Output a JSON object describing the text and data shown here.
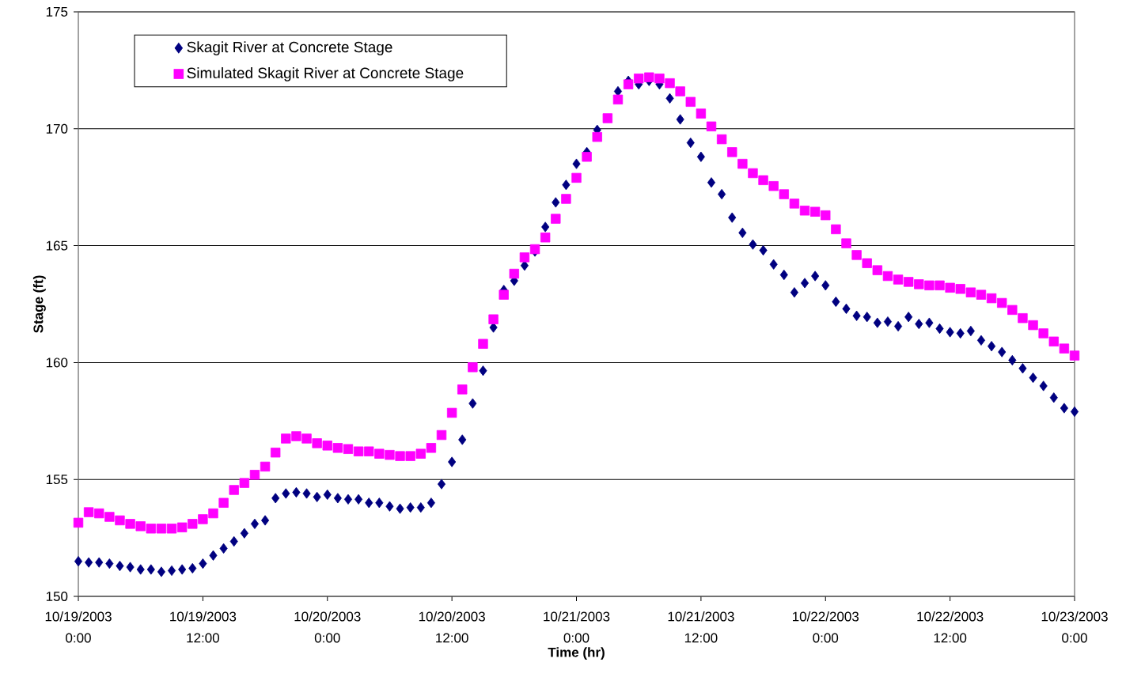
{
  "chart_data": {
    "type": "scatter",
    "xlabel": "Time (hr)",
    "ylabel": "Stage (ft)",
    "x": [
      "2003-10-19T00:00",
      "2003-10-19T01:00",
      "2003-10-19T02:00",
      "2003-10-19T03:00",
      "2003-10-19T04:00",
      "2003-10-19T05:00",
      "2003-10-19T06:00",
      "2003-10-19T07:00",
      "2003-10-19T08:00",
      "2003-10-19T09:00",
      "2003-10-19T10:00",
      "2003-10-19T11:00",
      "2003-10-19T12:00",
      "2003-10-19T13:00",
      "2003-10-19T14:00",
      "2003-10-19T15:00",
      "2003-10-19T16:00",
      "2003-10-19T17:00",
      "2003-10-19T18:00",
      "2003-10-19T19:00",
      "2003-10-19T20:00",
      "2003-10-19T21:00",
      "2003-10-19T22:00",
      "2003-10-19T23:00",
      "2003-10-20T00:00",
      "2003-10-20T01:00",
      "2003-10-20T02:00",
      "2003-10-20T03:00",
      "2003-10-20T04:00",
      "2003-10-20T05:00",
      "2003-10-20T06:00",
      "2003-10-20T07:00",
      "2003-10-20T08:00",
      "2003-10-20T09:00",
      "2003-10-20T10:00",
      "2003-10-20T11:00",
      "2003-10-20T12:00",
      "2003-10-20T13:00",
      "2003-10-20T14:00",
      "2003-10-20T15:00",
      "2003-10-20T16:00",
      "2003-10-20T17:00",
      "2003-10-20T18:00",
      "2003-10-20T19:00",
      "2003-10-20T20:00",
      "2003-10-20T21:00",
      "2003-10-20T22:00",
      "2003-10-20T23:00",
      "2003-10-21T00:00",
      "2003-10-21T01:00",
      "2003-10-21T02:00",
      "2003-10-21T03:00",
      "2003-10-21T04:00",
      "2003-10-21T05:00",
      "2003-10-21T06:00",
      "2003-10-21T07:00",
      "2003-10-21T08:00",
      "2003-10-21T09:00",
      "2003-10-21T10:00",
      "2003-10-21T11:00",
      "2003-10-21T12:00",
      "2003-10-21T13:00",
      "2003-10-21T14:00",
      "2003-10-21T15:00",
      "2003-10-21T16:00",
      "2003-10-21T17:00",
      "2003-10-21T18:00",
      "2003-10-21T19:00",
      "2003-10-21T20:00",
      "2003-10-21T21:00",
      "2003-10-21T22:00",
      "2003-10-21T23:00",
      "2003-10-22T00:00",
      "2003-10-22T01:00",
      "2003-10-22T02:00",
      "2003-10-22T03:00",
      "2003-10-22T04:00",
      "2003-10-22T05:00",
      "2003-10-22T06:00",
      "2003-10-22T07:00",
      "2003-10-22T08:00",
      "2003-10-22T09:00",
      "2003-10-22T10:00",
      "2003-10-22T11:00",
      "2003-10-22T12:00",
      "2003-10-22T13:00",
      "2003-10-22T14:00",
      "2003-10-22T15:00",
      "2003-10-22T16:00",
      "2003-10-22T17:00",
      "2003-10-22T18:00",
      "2003-10-22T19:00",
      "2003-10-22T20:00",
      "2003-10-22T21:00",
      "2003-10-22T22:00",
      "2003-10-22T23:00",
      "2003-10-23T00:00"
    ],
    "series": [
      {
        "name": "Skagit River at Concrete Stage",
        "color": "#000080",
        "marker": "diamond",
        "values": [
          151.5,
          151.45,
          151.45,
          151.4,
          151.3,
          151.25,
          151.15,
          151.15,
          151.05,
          151.1,
          151.15,
          151.2,
          151.4,
          151.75,
          152.05,
          152.35,
          152.7,
          153.1,
          153.25,
          154.2,
          154.4,
          154.45,
          154.4,
          154.25,
          154.35,
          154.2,
          154.15,
          154.15,
          154.0,
          154.0,
          153.85,
          153.75,
          153.8,
          153.8,
          154.0,
          154.8,
          155.75,
          156.7,
          158.25,
          159.65,
          161.5,
          163.1,
          163.5,
          164.15,
          164.75,
          165.8,
          166.85,
          167.6,
          168.5,
          169.0,
          169.95,
          null,
          171.6,
          172.05,
          171.9,
          172.05,
          171.9,
          171.3,
          170.4,
          169.4,
          168.8,
          167.7,
          167.2,
          166.2,
          165.55,
          165.05,
          164.8,
          164.2,
          163.75,
          163.0,
          163.4,
          163.7,
          163.3,
          162.6,
          162.3,
          162.0,
          161.95,
          161.7,
          161.75,
          161.55,
          161.95,
          161.65,
          161.7,
          161.45,
          161.3,
          161.25,
          161.35,
          160.95,
          160.7,
          160.45,
          160.1,
          159.75,
          159.35,
          159.0,
          158.5,
          158.05,
          157.9
        ]
      },
      {
        "name": "Simulated Skagit River at Concrete Stage",
        "color": "#ff00ff",
        "marker": "square",
        "values": [
          153.15,
          153.6,
          153.55,
          153.4,
          153.25,
          153.1,
          153.0,
          152.9,
          152.9,
          152.9,
          152.95,
          153.1,
          153.3,
          153.55,
          154.0,
          154.55,
          154.85,
          155.2,
          155.55,
          156.15,
          156.75,
          156.85,
          156.75,
          156.55,
          156.45,
          156.35,
          156.3,
          156.2,
          156.2,
          156.1,
          156.05,
          156.0,
          156.0,
          156.1,
          156.35,
          156.9,
          157.85,
          158.85,
          159.8,
          160.8,
          161.85,
          162.9,
          163.8,
          164.5,
          164.85,
          165.35,
          166.15,
          167.0,
          167.9,
          168.8,
          169.65,
          170.45,
          171.25,
          171.9,
          172.15,
          172.2,
          172.15,
          171.95,
          171.6,
          171.15,
          170.65,
          170.1,
          169.55,
          169.0,
          168.5,
          168.1,
          167.8,
          167.55,
          167.2,
          166.8,
          166.5,
          166.45,
          166.3,
          165.7,
          165.1,
          164.6,
          164.25,
          163.95,
          163.7,
          163.55,
          163.45,
          163.35,
          163.3,
          163.3,
          163.2,
          163.15,
          163.0,
          162.9,
          162.75,
          162.55,
          162.25,
          161.9,
          161.6,
          161.25,
          160.9,
          160.6,
          160.3
        ]
      }
    ],
    "xlim": [
      "2003-10-19T00:00",
      "2003-10-23T00:00"
    ],
    "xticks": [
      {
        "value": "2003-10-19T00:00",
        "label": "10/19/2003 0:00"
      },
      {
        "value": "2003-10-19T12:00",
        "label": "10/19/2003 12:00"
      },
      {
        "value": "2003-10-20T00:00",
        "label": "10/20/2003 0:00"
      },
      {
        "value": "2003-10-20T12:00",
        "label": "10/20/2003 12:00"
      },
      {
        "value": "2003-10-21T00:00",
        "label": "10/21/2003 0:00"
      },
      {
        "value": "2003-10-21T12:00",
        "label": "10/21/2003 12:00"
      },
      {
        "value": "2003-10-22T00:00",
        "label": "10/22/2003 0:00"
      },
      {
        "value": "2003-10-22T12:00",
        "label": "10/22/2003 12:00"
      },
      {
        "value": "2003-10-23T00:00",
        "label": "10/23/2003 0:00"
      }
    ],
    "ylim": [
      150,
      175
    ],
    "yticks": [
      150,
      155,
      160,
      165,
      170,
      175
    ],
    "grid": "y",
    "legend": "top left"
  }
}
